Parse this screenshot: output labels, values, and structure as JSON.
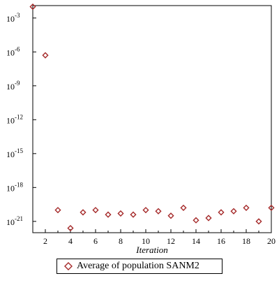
{
  "chart_data": {
    "type": "scatter",
    "title": "",
    "xlabel": "Iteration",
    "ylabel": "",
    "y_scale": "log",
    "xlim": [
      1,
      20
    ],
    "ylim_log10": [
      -22,
      -1.9
    ],
    "x_ticks": [
      2,
      4,
      6,
      8,
      10,
      12,
      14,
      16,
      18,
      20
    ],
    "y_ticks": [
      {
        "exponent": -3,
        "label_base": "10",
        "label_exp": "-3"
      },
      {
        "exponent": -6,
        "label_base": "10",
        "label_exp": "-6"
      },
      {
        "exponent": -9,
        "label_base": "10",
        "label_exp": "-9"
      },
      {
        "exponent": -12,
        "label_base": "10",
        "label_exp": "-12"
      },
      {
        "exponent": -15,
        "label_base": "10",
        "label_exp": "-15"
      },
      {
        "exponent": -18,
        "label_base": "10",
        "label_exp": "-18"
      },
      {
        "exponent": -21,
        "label_base": "10",
        "label_exp": "-21"
      }
    ],
    "grid": false,
    "legend_position": "bottom-center",
    "marker": "diamond",
    "marker_color": "#a52a2a",
    "series": [
      {
        "name": "Average of population SANM2",
        "x": [
          1,
          2,
          3,
          4,
          5,
          6,
          7,
          8,
          9,
          10,
          11,
          12,
          13,
          14,
          15,
          16,
          17,
          18,
          19,
          20
        ],
        "log10_y": [
          -2.0,
          -6.3,
          -20.0,
          -21.6,
          -20.2,
          -20.0,
          -20.4,
          -20.3,
          -20.4,
          -20.0,
          -20.1,
          -20.5,
          -19.8,
          -20.9,
          -20.7,
          -20.2,
          -20.1,
          -19.8,
          -21.0,
          -19.8
        ]
      }
    ]
  }
}
